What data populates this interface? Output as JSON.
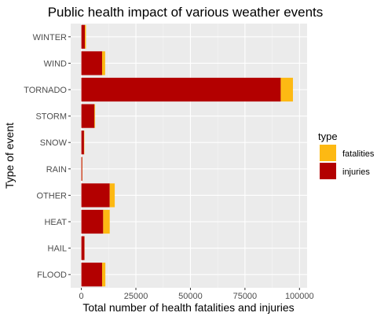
{
  "chart_data": {
    "type": "bar",
    "orientation": "horizontal",
    "stacked": true,
    "title": "Public health impact of various weather events",
    "xlabel": "Total number of health fatalities and injuries",
    "ylabel": "Type of event",
    "xlim": [
      0,
      100000
    ],
    "xticks": [
      0,
      25000,
      50000,
      75000,
      100000
    ],
    "xtick_labels": [
      "0",
      "25000",
      "50000",
      "75000",
      "100000"
    ],
    "grid": true,
    "legend_position": "right",
    "legend_title": "type",
    "categories": [
      "WINTER",
      "WIND",
      "TORNADO",
      "STORM",
      "SNOW",
      "RAIN",
      "OTHER",
      "HEAT",
      "HAIL",
      "FLOOD"
    ],
    "series": [
      {
        "name": "injuries",
        "color": "#b30000",
        "values": [
          1600,
          9500,
          91400,
          6000,
          1200,
          400,
          13000,
          10000,
          1400,
          9500
        ]
      },
      {
        "name": "fatalities",
        "color": "#fdb913",
        "values": [
          500,
          1400,
          5600,
          300,
          150,
          100,
          2300,
          3000,
          50,
          1500
        ]
      }
    ],
    "legend_order": [
      "fatalities",
      "injuries"
    ]
  }
}
